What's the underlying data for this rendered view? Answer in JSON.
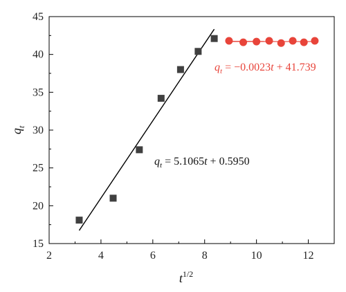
{
  "chart_data": {
    "type": "scatter",
    "title": "",
    "xlabel": {
      "base": "t",
      "sup": "1/2"
    },
    "ylabel": {
      "base": "q",
      "sub": "t"
    },
    "xlim": [
      2,
      13
    ],
    "ylim": [
      15,
      45
    ],
    "xticks": [
      2,
      4,
      6,
      8,
      10,
      12
    ],
    "yticks": [
      15,
      20,
      25,
      30,
      35,
      40,
      45
    ],
    "grid": false,
    "series": [
      {
        "marker": "square",
        "color": "#404040",
        "x": [
          3.16,
          4.47,
          5.48,
          6.32,
          7.07,
          7.75,
          8.37
        ],
        "y": [
          18.1,
          21.0,
          27.4,
          34.2,
          38.0,
          40.4,
          42.1
        ],
        "fit": {
          "slope": 5.1065,
          "intercept": 0.595,
          "x_range": [
            3.16,
            8.37
          ],
          "line_color": "#000000",
          "equation": {
            "lhs": "q",
            "lhs_sub": "t",
            "rhs": " = 5.1065",
            "var": "t",
            "tail": " + 0.5950"
          }
        }
      },
      {
        "marker": "circle",
        "color": "#e8443a",
        "x": [
          8.94,
          9.49,
          10.0,
          10.49,
          10.95,
          11.4,
          11.83,
          12.25
        ],
        "y": [
          41.8,
          41.6,
          41.7,
          41.8,
          41.5,
          41.8,
          41.6,
          41.8
        ],
        "fit": {
          "slope": -0.0023,
          "intercept": 41.739,
          "x_range": [
            8.94,
            12.25
          ],
          "line_color": "#e8443a",
          "equation": {
            "lhs": "q",
            "lhs_sub": "t",
            "rhs": " = −0.0023",
            "var": "t",
            "tail": " + 41.739"
          }
        }
      }
    ]
  }
}
